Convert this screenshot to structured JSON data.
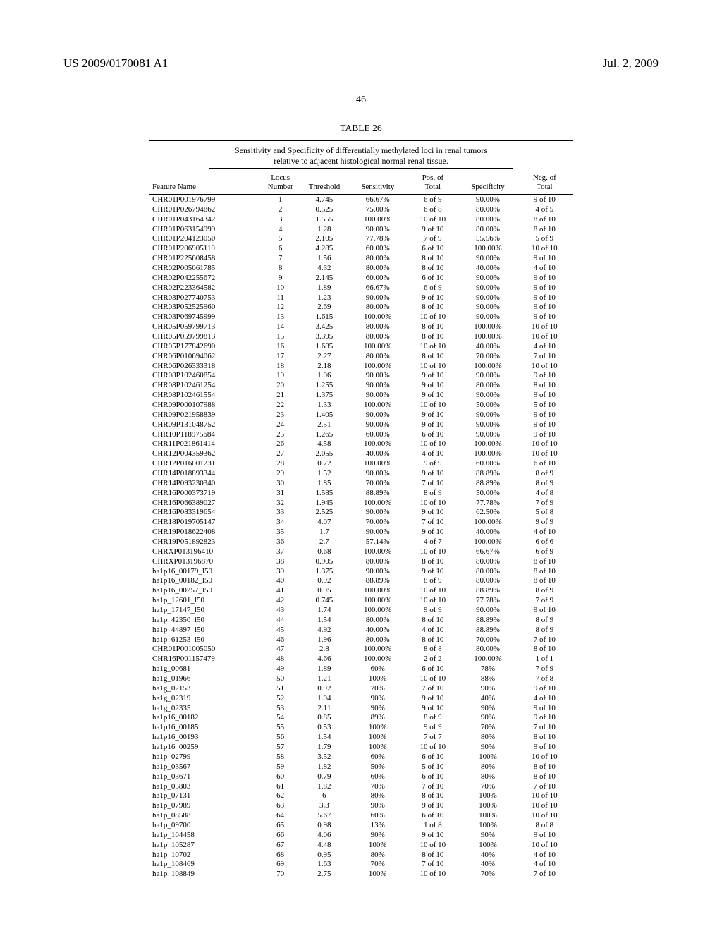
{
  "header": {
    "publication_number": "US 2009/0170081 A1",
    "publication_date": "Jul. 2, 2009"
  },
  "page_number": "46",
  "table": {
    "caption": "TABLE 26",
    "subtitle_line1": "Sensitivity and Specificity of differentially methylated loci in renal tumors",
    "subtitle_line2": "relative to adjacent histological normal renal tissue.",
    "columns": [
      {
        "line1": "",
        "line2": "Feature Name"
      },
      {
        "line1": "Locus",
        "line2": "Number"
      },
      {
        "line1": "",
        "line2": "Threshold"
      },
      {
        "line1": "",
        "line2": "Sensitivity"
      },
      {
        "line1": "Pos. of",
        "line2": "Total"
      },
      {
        "line1": "",
        "line2": "Specificity"
      },
      {
        "line1": "Neg. of",
        "line2": "Total"
      }
    ],
    "rows": [
      [
        "CHR01P001976799",
        "1",
        "4.745",
        "66.67%",
        "6 of 9",
        "90.00%",
        "9 of 10"
      ],
      [
        "CHR01P026794862",
        "2",
        "0.525",
        "75.00%",
        "6 of 8",
        "80.00%",
        "4 of 5"
      ],
      [
        "CHR01P043164342",
        "3",
        "1.555",
        "100.00%",
        "10 of 10",
        "80.00%",
        "8 of 10"
      ],
      [
        "CHR01P063154999",
        "4",
        "1.28",
        "90.00%",
        "9 of 10",
        "80.00%",
        "8 of 10"
      ],
      [
        "CHR01P204123050",
        "5",
        "2.105",
        "77.78%",
        "7 of 9",
        "55.56%",
        "5 of 9"
      ],
      [
        "CHR01P206905110",
        "6",
        "4.285",
        "60.00%",
        "6 of 10",
        "100.00%",
        "10 of 10"
      ],
      [
        "CHR01P225608458",
        "7",
        "1.56",
        "80.00%",
        "8 of 10",
        "90.00%",
        "9 of 10"
      ],
      [
        "CHR02P005061785",
        "8",
        "4.32",
        "80.00%",
        "8 of 10",
        "40.00%",
        "4 of 10"
      ],
      [
        "CHR02P042255672",
        "9",
        "2.145",
        "60.00%",
        "6 of 10",
        "90.00%",
        "9 of 10"
      ],
      [
        "CHR02P223364582",
        "10",
        "1.89",
        "66.67%",
        "6 of 9",
        "90.00%",
        "9 of 10"
      ],
      [
        "CHR03P027740753",
        "11",
        "1.23",
        "90.00%",
        "9 of 10",
        "90.00%",
        "9 of 10"
      ],
      [
        "CHR03P052525960",
        "12",
        "2.69",
        "80.00%",
        "8 of 10",
        "90.00%",
        "9 of 10"
      ],
      [
        "CHR03P069745999",
        "13",
        "1.615",
        "100.00%",
        "10 of 10",
        "90.00%",
        "9 of 10"
      ],
      [
        "CHR05P059799713",
        "14",
        "3.425",
        "80.00%",
        "8 of 10",
        "100.00%",
        "10 of 10"
      ],
      [
        "CHR05P059799813",
        "15",
        "3.395",
        "80.00%",
        "8 of 10",
        "100.00%",
        "10 of 10"
      ],
      [
        "CHR05P177842690",
        "16",
        "1.685",
        "100.00%",
        "10 of 10",
        "40.00%",
        "4 of 10"
      ],
      [
        "CHR06P010694062",
        "17",
        "2.27",
        "80.00%",
        "8 of 10",
        "70.00%",
        "7 of 10"
      ],
      [
        "CHR06P026333318",
        "18",
        "2.18",
        "100.00%",
        "10 of 10",
        "100.00%",
        "10 of 10"
      ],
      [
        "CHR08P102460854",
        "19",
        "1.06",
        "90.00%",
        "9 of 10",
        "90.00%",
        "9 of 10"
      ],
      [
        "CHR08P102461254",
        "20",
        "1.255",
        "90.00%",
        "9 of 10",
        "80.00%",
        "8 of 10"
      ],
      [
        "CHR08P102461554",
        "21",
        "1.375",
        "90.00%",
        "9 of 10",
        "90.00%",
        "9 of 10"
      ],
      [
        "CHR09P000107988",
        "22",
        "1.33",
        "100.00%",
        "10 of 10",
        "50.00%",
        "5 of 10"
      ],
      [
        "CHR09P021958839",
        "23",
        "1.405",
        "90.00%",
        "9 of 10",
        "90.00%",
        "9 of 10"
      ],
      [
        "CHR09P131048752",
        "24",
        "2.51",
        "90.00%",
        "9 of 10",
        "90.00%",
        "9 of 10"
      ],
      [
        "CHR10P118975684",
        "25",
        "1.265",
        "60.00%",
        "6 of 10",
        "90.00%",
        "9 of 10"
      ],
      [
        "CHR11P021861414",
        "26",
        "4.58",
        "100.00%",
        "10 of 10",
        "100.00%",
        "10 of 10"
      ],
      [
        "CHR12P004359362",
        "27",
        "2.055",
        "40.00%",
        "4 of 10",
        "100.00%",
        "10 of 10"
      ],
      [
        "CHR12P016001231",
        "28",
        "0.72",
        "100.00%",
        "9 of 9",
        "60.00%",
        "6 of 10"
      ],
      [
        "CHR14P018893344",
        "29",
        "1.52",
        "90.00%",
        "9 of 10",
        "88.89%",
        "8 of 9"
      ],
      [
        "CHR14P093230340",
        "30",
        "1.85",
        "70.00%",
        "7 of 10",
        "88.89%",
        "8 of 9"
      ],
      [
        "CHR16P000373719",
        "31",
        "1.585",
        "88.89%",
        "8 of 9",
        "50.00%",
        "4 of 8"
      ],
      [
        "CHR16P066389027",
        "32",
        "1.945",
        "100.00%",
        "10 of 10",
        "77.78%",
        "7 of 9"
      ],
      [
        "CHR16P083319654",
        "33",
        "2.525",
        "90.00%",
        "9 of 10",
        "62.50%",
        "5 of 8"
      ],
      [
        "CHR18P019705147",
        "34",
        "4.07",
        "70.00%",
        "7 of 10",
        "100.00%",
        "9 of 9"
      ],
      [
        "CHR19P018622408",
        "35",
        "1.7",
        "90.00%",
        "9 of 10",
        "40.00%",
        "4 of 10"
      ],
      [
        "CHR19P051892823",
        "36",
        "2.7",
        "57.14%",
        "4 of 7",
        "100.00%",
        "6 of 6"
      ],
      [
        "CHRXP013196410",
        "37",
        "0.68",
        "100.00%",
        "10 of 10",
        "66.67%",
        "6 of 9"
      ],
      [
        "CHRXP013196870",
        "38",
        "0.905",
        "80.00%",
        "8 of 10",
        "80.00%",
        "8 of 10"
      ],
      [
        "ha1p16_00179_l50",
        "39",
        "1.375",
        "90.00%",
        "9 of 10",
        "80.00%",
        "8 of 10"
      ],
      [
        "ha1p16_00182_l50",
        "40",
        "0.92",
        "88.89%",
        "8 of 9",
        "80.00%",
        "8 of 10"
      ],
      [
        "ha1p16_00257_l50",
        "41",
        "0.95",
        "100.00%",
        "10 of 10",
        "88.89%",
        "8 of 9"
      ],
      [
        "ha1p_12601_l50",
        "42",
        "0.745",
        "100.00%",
        "10 of 10",
        "77.78%",
        "7 of 9"
      ],
      [
        "ha1p_17147_l50",
        "43",
        "1.74",
        "100.00%",
        "9 of 9",
        "90.00%",
        "9 of 10"
      ],
      [
        "ha1p_42350_l50",
        "44",
        "1.54",
        "80.00%",
        "8 of 10",
        "88.89%",
        "8 of 9"
      ],
      [
        "ha1p_44897_l50",
        "45",
        "4.92",
        "40.00%",
        "4 of 10",
        "88.89%",
        "8 of 9"
      ],
      [
        "ha1p_61253_l50",
        "46",
        "1.96",
        "80.00%",
        "8 of 10",
        "70.00%",
        "7 of 10"
      ],
      [
        "CHR01P001005050",
        "47",
        "2.8",
        "100.00%",
        "8 of 8",
        "80.00%",
        "8 of 10"
      ],
      [
        "CHR16P001157479",
        "48",
        "4.66",
        "100.00%",
        "2 of 2",
        "100.00%",
        "1 of 1"
      ],
      [
        "ha1g_00681",
        "49",
        "1.89",
        "60%",
        "6 of 10",
        "78%",
        "7 of 9"
      ],
      [
        "ha1g_01966",
        "50",
        "1.21",
        "100%",
        "10 of 10",
        "88%",
        "7 of 8"
      ],
      [
        "ha1g_02153",
        "51",
        "0.92",
        "70%",
        "7 of 10",
        "90%",
        "9 of 10"
      ],
      [
        "ha1g_02319",
        "52",
        "1.04",
        "90%",
        "9 of 10",
        "40%",
        "4 of 10"
      ],
      [
        "ha1g_02335",
        "53",
        "2.11",
        "90%",
        "9 of 10",
        "90%",
        "9 of 10"
      ],
      [
        "ha1p16_00182",
        "54",
        "0.85",
        "89%",
        "8 of 9",
        "90%",
        "9 of 10"
      ],
      [
        "ha1p16_00185",
        "55",
        "0.53",
        "100%",
        "9 of 9",
        "70%",
        "7 of 10"
      ],
      [
        "ha1p16_00193",
        "56",
        "1.54",
        "100%",
        "7 of 7",
        "80%",
        "8 of 10"
      ],
      [
        "ha1p16_00259",
        "57",
        "1.79",
        "100%",
        "10 of 10",
        "90%",
        "9 of 10"
      ],
      [
        "ha1p_02799",
        "58",
        "3.52",
        "60%",
        "6 of 10",
        "100%",
        "10 of 10"
      ],
      [
        "ha1p_03567",
        "59",
        "1.82",
        "50%",
        "5 of 10",
        "80%",
        "8 of 10"
      ],
      [
        "ha1p_03671",
        "60",
        "0.79",
        "60%",
        "6 of 10",
        "80%",
        "8 of 10"
      ],
      [
        "ha1p_05803",
        "61",
        "1.82",
        "70%",
        "7 of 10",
        "70%",
        "7 of 10"
      ],
      [
        "ha1p_07131",
        "62",
        "6",
        "80%",
        "8 of 10",
        "100%",
        "10 of 10"
      ],
      [
        "ha1p_07989",
        "63",
        "3.3",
        "90%",
        "9 of 10",
        "100%",
        "10 of 10"
      ],
      [
        "ha1p_08588",
        "64",
        "5.67",
        "60%",
        "6 of 10",
        "100%",
        "10 of 10"
      ],
      [
        "ha1p_09700",
        "65",
        "0.98",
        "13%",
        "1 of 8",
        "100%",
        "8 of 8"
      ],
      [
        "ha1p_104458",
        "66",
        "4.06",
        "90%",
        "9 of 10",
        "90%",
        "9 of 10"
      ],
      [
        "ha1p_105287",
        "67",
        "4.48",
        "100%",
        "10 of 10",
        "100%",
        "10 of 10"
      ],
      [
        "ha1p_10702",
        "68",
        "0.95",
        "80%",
        "8 of 10",
        "40%",
        "4 of 10"
      ],
      [
        "ha1p_108469",
        "69",
        "1.63",
        "70%",
        "7 of 10",
        "40%",
        "4 of 10"
      ],
      [
        "ha1p_108849",
        "70",
        "2.75",
        "100%",
        "10 of 10",
        "70%",
        "7 of 10"
      ]
    ]
  }
}
